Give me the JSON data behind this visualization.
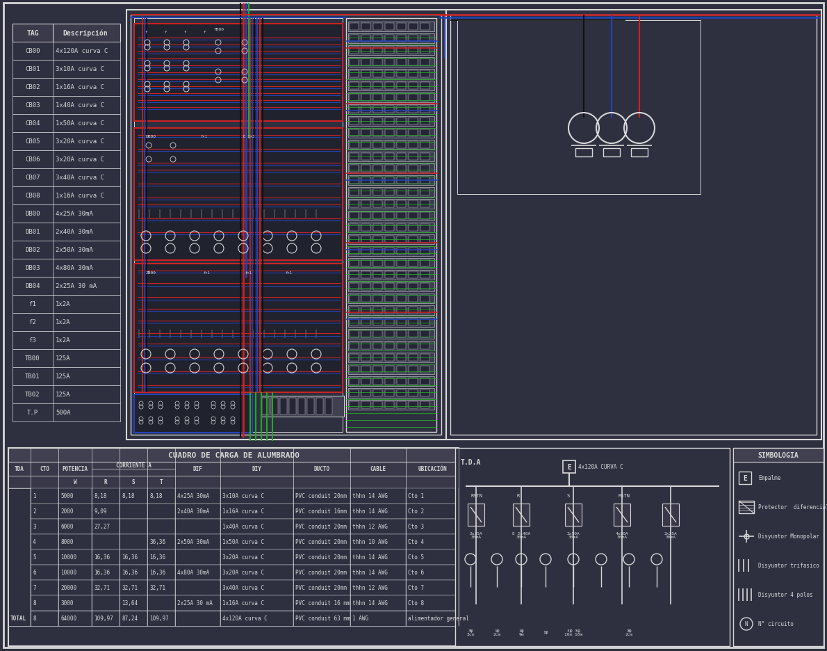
{
  "bg_color": "#2e3040",
  "panel_bg": "#2a2c3a",
  "fg_color": "#c8c8b0",
  "white": "#d8d8d8",
  "tag_table": {
    "rows": [
      [
        "CB00",
        "4x120A curva C"
      ],
      [
        "CB01",
        "3x10A curva C"
      ],
      [
        "CB02",
        "1x16A curva C"
      ],
      [
        "CB03",
        "1x40A curva C"
      ],
      [
        "CB04",
        "1x50A curva C"
      ],
      [
        "CB05",
        "3x20A curva C"
      ],
      [
        "CB06",
        "3x20A curva C"
      ],
      [
        "CB07",
        "3x40A curva C"
      ],
      [
        "CB08",
        "1x16A curva C"
      ],
      [
        "DB00",
        "4x25A 30mA"
      ],
      [
        "DB01",
        "2x40A 30mA"
      ],
      [
        "DB02",
        "2x50A 30mA"
      ],
      [
        "DB03",
        "4x80A 30mA"
      ],
      [
        "DB04",
        "2x25A 30 mA"
      ],
      [
        "f1",
        "1x2A"
      ],
      [
        "f2",
        "1x2A"
      ],
      [
        "f3",
        "1x2A"
      ],
      [
        "TB00",
        "125A"
      ],
      [
        "TB01",
        "125A"
      ],
      [
        "TB02",
        "125A"
      ],
      [
        "T.P",
        "500A"
      ]
    ]
  },
  "load_table": {
    "title": "CUADRO DE CARGA DE ALUMBRADO",
    "rows": [
      [
        "",
        "1",
        "5000",
        "8,18",
        "8,18",
        "8,18",
        "4x25A 30mA",
        "3x10A curva C",
        "PVC conduit 20mm",
        "thhn 14 AWG",
        "Cto 1"
      ],
      [
        "",
        "2",
        "2000",
        "9,09",
        "",
        "",
        "2x40A 30mA",
        "1x16A curva C",
        "PVC conduit 16mm",
        "thhn 14 AWG",
        "Cto 2"
      ],
      [
        "",
        "3",
        "6000",
        "27,27",
        "",
        "",
        "",
        "1x40A curva C",
        "PVC conduit 20mm",
        "thhn 12 AWG",
        "Cto 3"
      ],
      [
        "",
        "4",
        "8000",
        "",
        "",
        "36,36",
        "2x50A 30mA",
        "1x50A curva C",
        "PVC conduit 20mm",
        "thhn 10 AWG",
        "Cto 4"
      ],
      [
        "",
        "5",
        "10000",
        "16,36",
        "16,36",
        "16,36",
        "",
        "3x20A curva C",
        "PVC conduit 20mm",
        "thhn 14 AWG",
        "Cto 5"
      ],
      [
        "",
        "6",
        "10000",
        "16,36",
        "16,36",
        "16,36",
        "4x80A 30mA",
        "3x20A curva C",
        "PVC conduit 20mm",
        "thhn 14 AWG",
        "Cto 6"
      ],
      [
        "",
        "7",
        "20000",
        "32,71",
        "32,71",
        "32,71",
        "",
        "3x40A curva C",
        "PVC conduit 20mm",
        "thhn 12 AWG",
        "Cto 7"
      ],
      [
        "",
        "8",
        "3000",
        "",
        "13,64",
        "",
        "2x25A 30 mA",
        "1x16A curva C",
        "PVC conduit 16 mm",
        "thhn 14 AWG",
        "Cto 8"
      ]
    ],
    "total": [
      "TOTAL",
      "8",
      "64000",
      "109,97",
      "87,24",
      "109,97",
      "",
      "4x120A curva C",
      "PVC conduit 63 mm",
      "1 AWG",
      "alimentador general"
    ]
  },
  "simbologia": {
    "title": "SIMBOLOGIA",
    "items": [
      [
        "E",
        "Empalme"
      ],
      [
        "dif",
        "Protector  diferencial"
      ],
      [
        "mono",
        "Disyuntor Monopolar"
      ],
      [
        "tri",
        "Disyuntor trifasico"
      ],
      [
        "4pol",
        "Disyuntor 4 polos"
      ],
      [
        "circ",
        "N° circuito"
      ]
    ]
  },
  "wire_red": "#cc2222",
  "wire_blue": "#2244bb",
  "wire_green": "#22aa22",
  "wire_dark": "#111111"
}
